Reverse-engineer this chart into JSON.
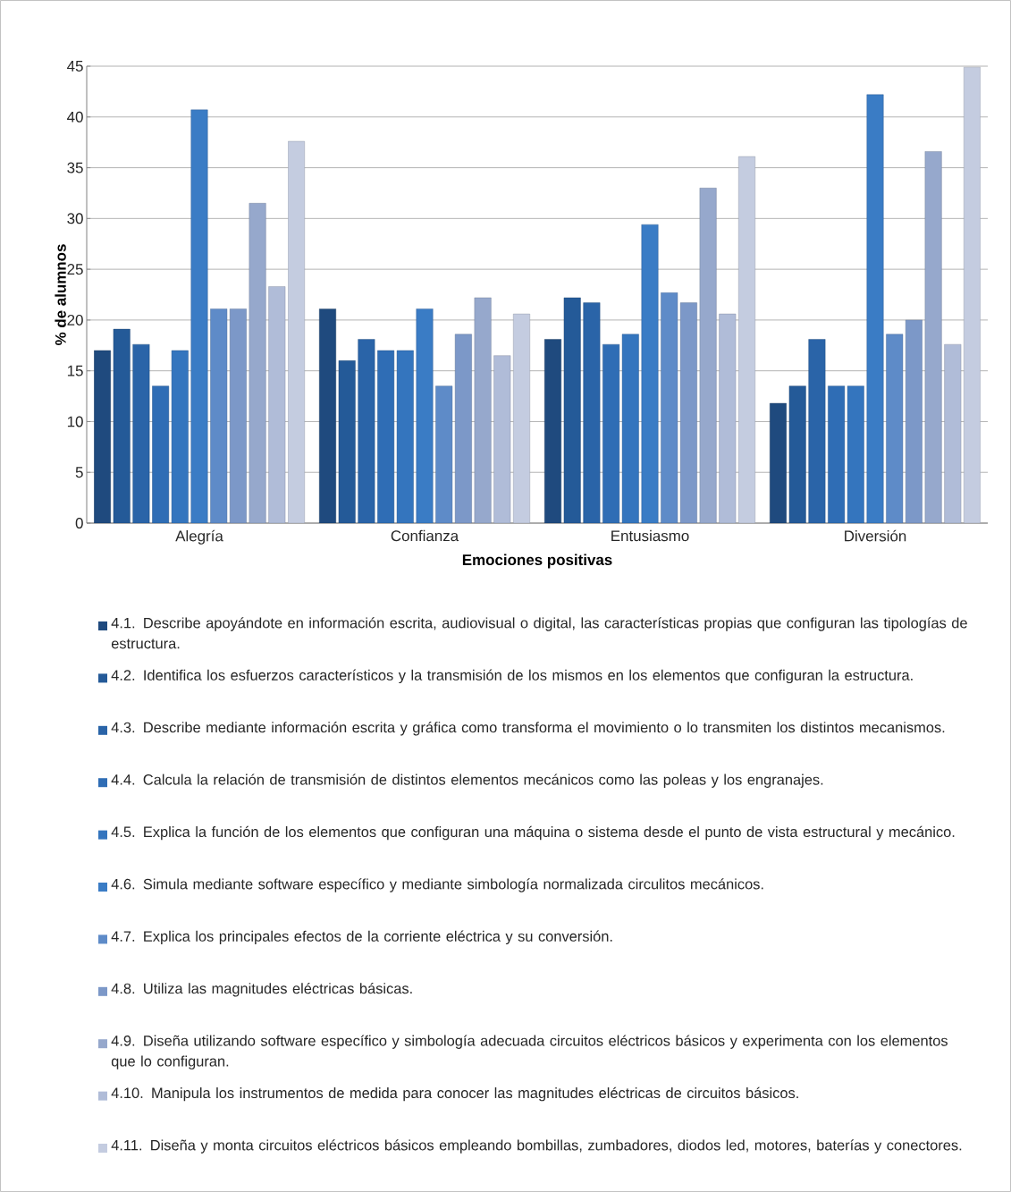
{
  "chart_data": {
    "type": "bar",
    "xlabel": "Emociones positivas",
    "ylabel": "% de alumnos",
    "categories": [
      "Alegría",
      "Confianza",
      "Entusiasmo",
      "Diversión"
    ],
    "ylim": [
      0,
      45
    ],
    "yticks": [
      0,
      5,
      10,
      15,
      20,
      25,
      30,
      35,
      40,
      45
    ],
    "grid": "y",
    "legend": "bottom",
    "series": [
      {
        "name": "4.1. Describe apoyándote en información escrita, audiovisual o digital, las características propias que configuran las tipologías de estructura.",
        "color": "#1f4a7e",
        "values": [
          17,
          21.1,
          18.1,
          11.8
        ]
      },
      {
        "name": "4.2. Identifica los esfuerzos característicos y la transmisión de los mismos en los elementos que configuran la estructura.",
        "color": "#245a98",
        "values": [
          19.1,
          16,
          22.2,
          13.5
        ]
      },
      {
        "name": "4.3. Describe mediante información escrita y gráfica como transforma el movimiento o lo transmiten los distintos mecanismos.",
        "color": "#2a64a8",
        "values": [
          17.6,
          18.1,
          21.7,
          18.1
        ]
      },
      {
        "name": "4.4. Calcula la relación de transmisión de distintos elementos mecánicos como las poleas y los engranajes.",
        "color": "#2f6db5",
        "values": [
          13.5,
          17,
          17.6,
          13.5
        ]
      },
      {
        "name": "4.5. Explica la función de los elementos que configuran una máquina o sistema desde el punto de vista estructural y mecánico.",
        "color": "#3475be",
        "values": [
          17,
          17,
          18.6,
          13.5
        ]
      },
      {
        "name": "4.6. Simula mediante software específico y mediante simbología normalizada circulitos mecánicos.",
        "color": "#3a7cc5",
        "values": [
          40.7,
          21.1,
          29.4,
          42.2
        ]
      },
      {
        "name": "4.7. Explica los principales efectos de la corriente eléctrica y su conversión.",
        "color": "#5e8bc8",
        "values": [
          21.1,
          13.5,
          22.7,
          18.6
        ]
      },
      {
        "name": "4.8. Utiliza las magnitudes eléctricas básicas.",
        "color": "#7c98c8",
        "values": [
          21.1,
          18.6,
          21.7,
          20
        ]
      },
      {
        "name": "4.9. Diseña utilizando software específico y simbología adecuada circuitos eléctricos básicos y experimenta con los elementos que lo configuran.",
        "color": "#96a8cc",
        "values": [
          31.5,
          22.2,
          33,
          36.6
        ]
      },
      {
        "name": "4.10. Manipula los instrumentos de medida para conocer las magnitudes eléctricas de circuitos básicos.",
        "color": "#b0bcd8",
        "values": [
          23.3,
          16.5,
          20.6,
          17.6
        ]
      },
      {
        "name": "4.11. Diseña y monta circuitos eléctricos básicos empleando bombillas, zumbadores, diodos led, motores, baterías y conectores.",
        "color": "#c4cce0",
        "values": [
          37.6,
          20.6,
          36.1,
          44.9
        ]
      }
    ]
  }
}
